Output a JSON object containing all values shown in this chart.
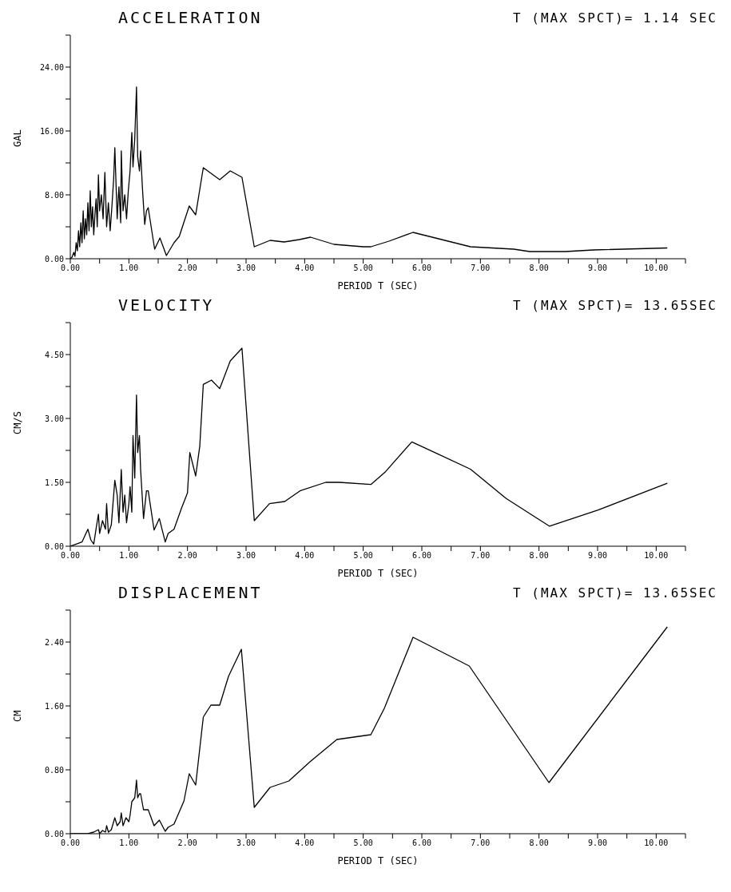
{
  "chart_data": [
    {
      "type": "line",
      "title": "ACCELERATION",
      "subtitle": "T (MAX SPCT)= 1.14 SEC",
      "xlabel": "PERIOD T (SEC)",
      "ylabel": "GAL",
      "xlim": [
        0,
        10.5
      ],
      "xticks": [
        {
          "value": 0,
          "label": "0.00"
        },
        {
          "value": 0.5,
          "label": null
        },
        {
          "value": 1,
          "label": "1.00"
        },
        {
          "value": 1.5,
          "label": null
        },
        {
          "value": 2,
          "label": "2.00"
        },
        {
          "value": 2.5,
          "label": null
        },
        {
          "value": 3,
          "label": "3.00"
        },
        {
          "value": 3.5,
          "label": null
        },
        {
          "value": 4,
          "label": "4.00"
        },
        {
          "value": 4.5,
          "label": null
        },
        {
          "value": 5,
          "label": "5.00"
        },
        {
          "value": 5.5,
          "label": null
        },
        {
          "value": 6,
          "label": "6.00"
        },
        {
          "value": 6.5,
          "label": null
        },
        {
          "value": 7,
          "label": "7.00"
        },
        {
          "value": 7.5,
          "label": null
        },
        {
          "value": 8,
          "label": "8.00"
        },
        {
          "value": 8.5,
          "label": null
        },
        {
          "value": 9,
          "label": "9.00"
        },
        {
          "value": 9.5,
          "label": null
        },
        {
          "value": 10,
          "label": "10.00"
        },
        {
          "value": 10.5,
          "label": null
        }
      ],
      "ylim": [
        0,
        28
      ],
      "yticks": [
        {
          "value": 0,
          "label": "0.00"
        },
        {
          "value": 4,
          "label": null
        },
        {
          "value": 8,
          "label": "8.00"
        },
        {
          "value": 12,
          "label": null
        },
        {
          "value": 16,
          "label": "16.00"
        },
        {
          "value": 20,
          "label": null
        },
        {
          "value": 24,
          "label": "24.00"
        },
        {
          "value": 28,
          "label": null
        }
      ],
      "series": [
        {
          "color": "#000000",
          "x": [
            0,
            0.03,
            0.06,
            0.08,
            0.1,
            0.12,
            0.14,
            0.16,
            0.18,
            0.2,
            0.22,
            0.24,
            0.26,
            0.28,
            0.3,
            0.32,
            0.34,
            0.36,
            0.38,
            0.4,
            0.42,
            0.44,
            0.46,
            0.48,
            0.5,
            0.53,
            0.56,
            0.59,
            0.62,
            0.65,
            0.68,
            0.71,
            0.74,
            0.76,
            0.78,
            0.8,
            0.83,
            0.86,
            0.87,
            0.9,
            0.93,
            0.96,
            0.99,
            1.02,
            1.05,
            1.07,
            1.1,
            1.13,
            1.15,
            1.18,
            1.2,
            1.23,
            1.27,
            1.3,
            1.33,
            1.38,
            1.44,
            1.53,
            1.64,
            1.77,
            1.86,
            2.03,
            2.14,
            2.27,
            2.55,
            2.73,
            2.93,
            3.14,
            3.41,
            3.65,
            3.91,
            4.1,
            4.5,
            5.0,
            5.13,
            5.44,
            5.85,
            6.83,
            7.57,
            7.84,
            8.45,
            8.93,
            10.19
          ],
          "values": [
            0,
            0.2,
            0.8,
            0.3,
            2.0,
            1.0,
            3.5,
            1.5,
            4.5,
            2.0,
            6.0,
            2.5,
            5.0,
            3.0,
            7.0,
            3.5,
            8.5,
            4.0,
            6.5,
            3.0,
            5.5,
            7.5,
            4.0,
            10.5,
            6.0,
            8.0,
            5.0,
            10.8,
            4.0,
            7.0,
            3.5,
            6.5,
            10.0,
            13.9,
            9.5,
            5.0,
            9.0,
            4.5,
            13.5,
            6.0,
            8.0,
            5.0,
            8.5,
            11.0,
            15.8,
            11.5,
            15.0,
            21.5,
            12.8,
            11.0,
            13.5,
            9.0,
            4.3,
            6.0,
            6.4,
            4.0,
            1.2,
            2.6,
            0.4,
            2.0,
            2.8,
            6.6,
            5.5,
            11.4,
            9.9,
            11.0,
            10.2,
            1.5,
            2.3,
            2.1,
            2.4,
            2.7,
            1.8,
            1.5,
            1.5,
            2.2,
            3.3,
            1.5,
            1.2,
            0.9,
            0.9,
            1.1,
            1.35
          ]
        }
      ]
    },
    {
      "type": "line",
      "title": "VELOCITY",
      "subtitle": "T (MAX SPCT)= 13.65SEC",
      "xlabel": "PERIOD T (SEC)",
      "ylabel": "CM/S",
      "xlim": [
        0,
        10.5
      ],
      "xticks": [
        {
          "value": 0,
          "label": "0.00"
        },
        {
          "value": 0.5,
          "label": null
        },
        {
          "value": 1,
          "label": "1.00"
        },
        {
          "value": 1.5,
          "label": null
        },
        {
          "value": 2,
          "label": "2.00"
        },
        {
          "value": 2.5,
          "label": null
        },
        {
          "value": 3,
          "label": "3.00"
        },
        {
          "value": 3.5,
          "label": null
        },
        {
          "value": 4,
          "label": "4.00"
        },
        {
          "value": 4.5,
          "label": null
        },
        {
          "value": 5,
          "label": "5.00"
        },
        {
          "value": 5.5,
          "label": null
        },
        {
          "value": 6,
          "label": "6.00"
        },
        {
          "value": 6.5,
          "label": null
        },
        {
          "value": 7,
          "label": "7.00"
        },
        {
          "value": 7.5,
          "label": null
        },
        {
          "value": 8,
          "label": "8.00"
        },
        {
          "value": 8.5,
          "label": null
        },
        {
          "value": 9,
          "label": "9.00"
        },
        {
          "value": 9.5,
          "label": null
        },
        {
          "value": 10,
          "label": "10.00"
        },
        {
          "value": 10.5,
          "label": null
        }
      ],
      "ylim": [
        0,
        5.25
      ],
      "yticks": [
        {
          "value": 0,
          "label": "0.00"
        },
        {
          "value": 0.75,
          "label": null
        },
        {
          "value": 1.5,
          "label": "1.50"
        },
        {
          "value": 2.25,
          "label": null
        },
        {
          "value": 3,
          "label": "3.00"
        },
        {
          "value": 3.75,
          "label": null
        },
        {
          "value": 4.5,
          "label": "4.50"
        },
        {
          "value": 5.25,
          "label": null
        }
      ],
      "series": [
        {
          "color": "#000000",
          "x": [
            0,
            0.1,
            0.2,
            0.3,
            0.35,
            0.4,
            0.45,
            0.48,
            0.5,
            0.55,
            0.6,
            0.62,
            0.65,
            0.7,
            0.76,
            0.8,
            0.83,
            0.87,
            0.9,
            0.93,
            0.96,
            1.0,
            1.02,
            1.05,
            1.07,
            1.1,
            1.13,
            1.15,
            1.18,
            1.2,
            1.25,
            1.3,
            1.33,
            1.43,
            1.52,
            1.62,
            1.67,
            1.77,
            1.9,
            2.0,
            2.04,
            2.14,
            2.21,
            2.27,
            2.41,
            2.55,
            2.73,
            2.93,
            3.14,
            3.4,
            3.66,
            3.92,
            4.36,
            4.59,
            5.13,
            5.38,
            5.83,
            6.22,
            6.83,
            7.44,
            8.18,
            9.01,
            10.19
          ],
          "values": [
            0,
            0.05,
            0.1,
            0.4,
            0.15,
            0.05,
            0.5,
            0.75,
            0.3,
            0.6,
            0.4,
            1.0,
            0.3,
            0.5,
            1.55,
            1.2,
            0.55,
            1.8,
            0.8,
            1.2,
            0.55,
            1.0,
            1.4,
            0.8,
            2.6,
            1.6,
            3.55,
            2.2,
            2.6,
            1.8,
            0.65,
            1.3,
            1.3,
            0.38,
            0.65,
            0.1,
            0.3,
            0.4,
            0.9,
            1.25,
            2.2,
            1.65,
            2.35,
            3.8,
            3.9,
            3.7,
            4.35,
            4.65,
            0.6,
            1.0,
            1.05,
            1.3,
            1.5,
            1.5,
            1.45,
            1.75,
            2.45,
            2.2,
            1.81,
            1.12,
            0.47,
            0.85,
            1.48
          ]
        }
      ]
    },
    {
      "type": "line",
      "title": "DISPLACEMENT",
      "subtitle": "T (MAX SPCT)= 13.65SEC",
      "xlabel": "PERIOD T (SEC)",
      "ylabel": "CM",
      "xlim": [
        0,
        10.5
      ],
      "xticks": [
        {
          "value": 0,
          "label": "0.00"
        },
        {
          "value": 0.5,
          "label": null
        },
        {
          "value": 1,
          "label": "1.00"
        },
        {
          "value": 1.5,
          "label": null
        },
        {
          "value": 2,
          "label": "2.00"
        },
        {
          "value": 2.5,
          "label": null
        },
        {
          "value": 3,
          "label": "3.00"
        },
        {
          "value": 3.5,
          "label": null
        },
        {
          "value": 4,
          "label": "4.00"
        },
        {
          "value": 4.5,
          "label": null
        },
        {
          "value": 5,
          "label": "5.00"
        },
        {
          "value": 5.5,
          "label": null
        },
        {
          "value": 6,
          "label": "6.00"
        },
        {
          "value": 6.5,
          "label": null
        },
        {
          "value": 7,
          "label": "7.00"
        },
        {
          "value": 7.5,
          "label": null
        },
        {
          "value": 8,
          "label": "8.00"
        },
        {
          "value": 8.5,
          "label": null
        },
        {
          "value": 9,
          "label": "9.00"
        },
        {
          "value": 9.5,
          "label": null
        },
        {
          "value": 10,
          "label": "10.00"
        },
        {
          "value": 10.5,
          "label": null
        }
      ],
      "ylim": [
        0,
        2.8
      ],
      "yticks": [
        {
          "value": 0,
          "label": "0.00"
        },
        {
          "value": 0.4,
          "label": null
        },
        {
          "value": 0.8,
          "label": "0.80"
        },
        {
          "value": 1.2,
          "label": null
        },
        {
          "value": 1.6,
          "label": "1.60"
        },
        {
          "value": 2,
          "label": null
        },
        {
          "value": 2.4,
          "label": "2.40"
        },
        {
          "value": 2.8,
          "label": null
        }
      ],
      "series": [
        {
          "color": "#000000",
          "x": [
            0,
            0.3,
            0.4,
            0.48,
            0.5,
            0.55,
            0.6,
            0.62,
            0.65,
            0.7,
            0.76,
            0.8,
            0.85,
            0.87,
            0.9,
            0.95,
            1.0,
            1.02,
            1.05,
            1.1,
            1.13,
            1.15,
            1.18,
            1.2,
            1.25,
            1.33,
            1.43,
            1.52,
            1.62,
            1.67,
            1.77,
            1.94,
            2.03,
            2.14,
            2.27,
            2.4,
            2.55,
            2.7,
            2.92,
            3.14,
            3.41,
            3.73,
            4.09,
            4.55,
            5.13,
            5.36,
            5.85,
            6.81,
            8.17,
            10.19
          ],
          "values": [
            0,
            0,
            0.02,
            0.05,
            0,
            0.04,
            0.02,
            0.1,
            0.02,
            0.05,
            0.2,
            0.1,
            0.15,
            0.26,
            0.1,
            0.2,
            0.15,
            0.23,
            0.4,
            0.45,
            0.67,
            0.45,
            0.5,
            0.5,
            0.3,
            0.3,
            0.1,
            0.17,
            0.03,
            0.08,
            0.12,
            0.41,
            0.75,
            0.61,
            1.46,
            1.61,
            1.61,
            1.97,
            2.31,
            0.33,
            0.58,
            0.66,
            0.9,
            1.18,
            1.24,
            1.57,
            2.46,
            2.1,
            0.64,
            2.59
          ]
        }
      ]
    }
  ]
}
